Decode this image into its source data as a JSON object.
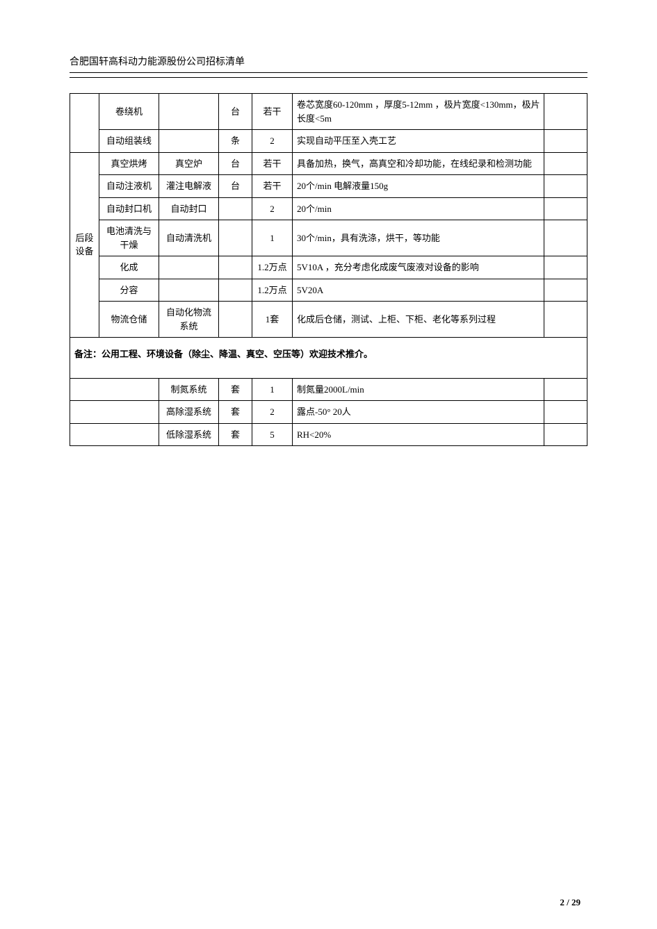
{
  "header_title": "合肥国轩高科动力能源股份公司招标清单",
  "page_number": "2 / 29",
  "note_line": "备注：公用工程、环境设备（除尘、降温、真空、空压等）欢迎技术推介。",
  "colors": {
    "text": "#000000",
    "bg": "#ffffff",
    "border": "#000000"
  },
  "font": {
    "family": "SimSun",
    "size_body": 13,
    "size_header": 14
  },
  "table1": {
    "group1": {
      "category": "",
      "rows": [
        {
          "name": "卷绕机",
          "model": "",
          "unit": "台",
          "qty": "若干",
          "spec": "卷芯宽度60-120mm ，厚度5-12mm ，极片宽度<130mm，极片长度<5m",
          "note": ""
        },
        {
          "name": "自动组装线",
          "model": "",
          "unit": "条",
          "qty": "2",
          "spec": "实现自动平压至入壳工艺",
          "note": ""
        }
      ]
    },
    "group2": {
      "category": "后段设备",
      "rows": [
        {
          "name": "真空烘烤",
          "model": "真空炉",
          "unit": "台",
          "qty": "若干",
          "spec": "具备加热，换气，高真空和冷却功能，在线纪录和检测功能",
          "note": ""
        },
        {
          "name": "自动注液机",
          "model": "灌注电解液",
          "unit": "台",
          "qty": "若干",
          "spec": "20个/min  电解液量150g",
          "note": ""
        },
        {
          "name": "自动封口机",
          "model": "自动封口",
          "unit": "",
          "qty": "2",
          "spec": "20个/min",
          "note": ""
        },
        {
          "name": "电池清洗与干燥",
          "model": "自动清洗机",
          "unit": "",
          "qty": "1",
          "spec": "30个/min，具有洗涤，烘干，等功能",
          "note": ""
        },
        {
          "name": "化成",
          "model": "",
          "unit": "",
          "qty": "1.2万点",
          "spec": "5V10A ，充分考虑化成废气废液对设备的影响",
          "note": ""
        },
        {
          "name": "分容",
          "model": "",
          "unit": "",
          "qty": "1.2万点",
          "spec": "5V20A",
          "note": ""
        },
        {
          "name": "物流仓储",
          "model": "自动化物流系统",
          "unit": "",
          "qty": "1套",
          "spec": "化成后仓储，测试、上柜、下柜、老化等系列过程",
          "note": ""
        }
      ]
    }
  },
  "table2": {
    "rows": [
      {
        "name": "",
        "model": "制氮系统",
        "unit": "套",
        "qty": "1",
        "spec": "制氮量2000L/min",
        "note": ""
      },
      {
        "name": "",
        "model": "高除湿系统",
        "unit": "套",
        "qty": "2",
        "spec": "露点-50° 20人",
        "note": ""
      },
      {
        "name": "",
        "model": "低除湿系统",
        "unit": "套",
        "qty": "5",
        "spec": "RH<20%",
        "note": ""
      }
    ]
  }
}
